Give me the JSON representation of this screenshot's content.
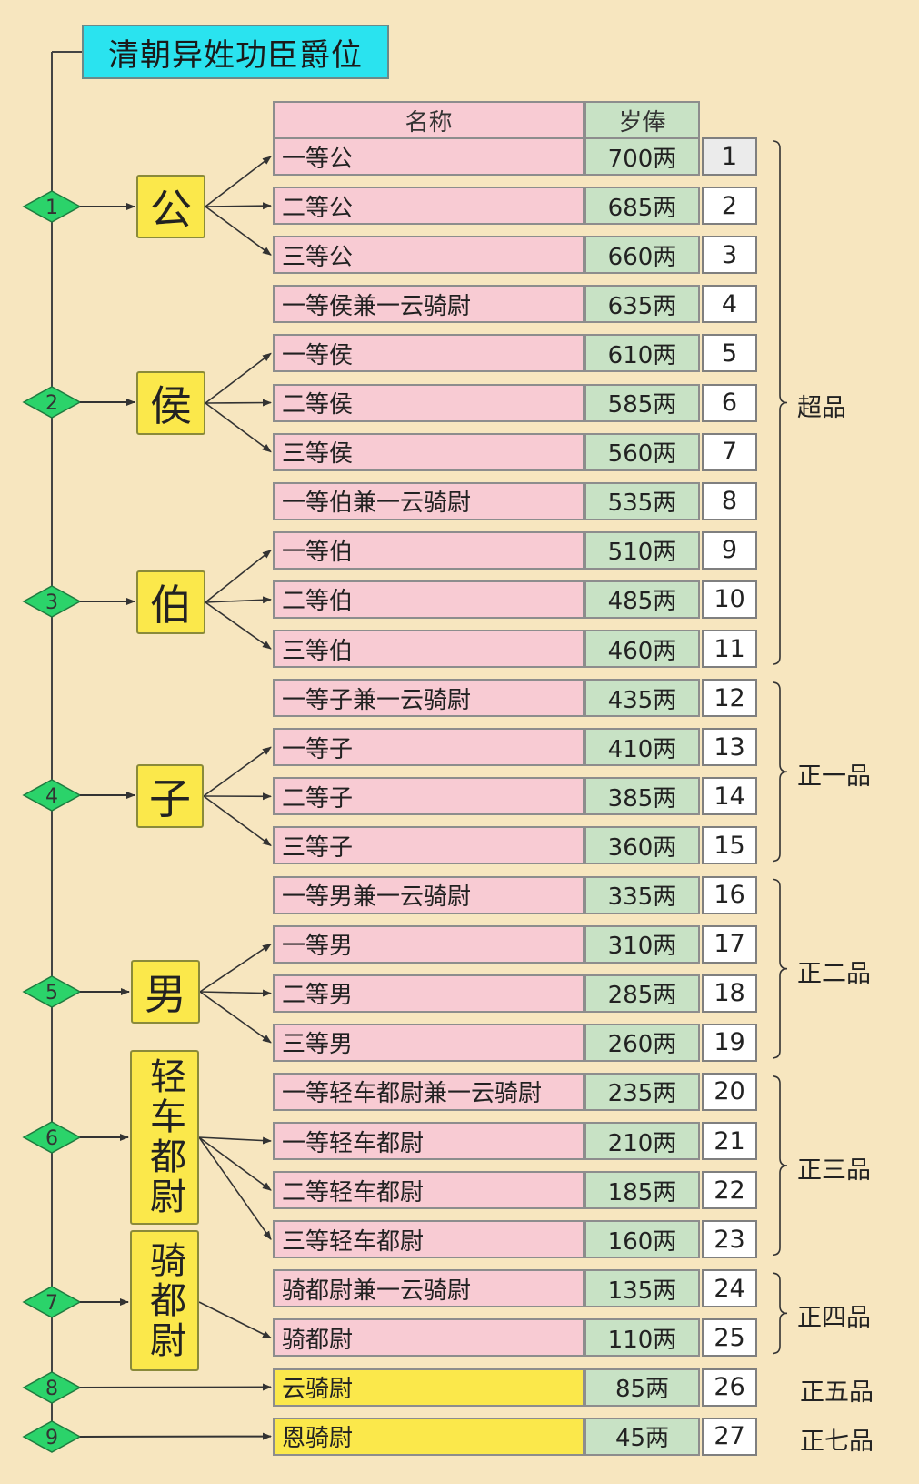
{
  "title": "清朝异姓功臣爵位",
  "headers": {
    "name": "名称",
    "salary": "岁俸"
  },
  "rows": [
    {
      "name": "一等公",
      "salary": "700两",
      "num": "1"
    },
    {
      "name": "二等公",
      "salary": "685两",
      "num": "2"
    },
    {
      "name": "三等公",
      "salary": "660两",
      "num": "3"
    },
    {
      "name": "一等侯兼一云骑尉",
      "salary": "635两",
      "num": "4"
    },
    {
      "name": "一等侯",
      "salary": "610两",
      "num": "5"
    },
    {
      "name": "二等侯",
      "salary": "585两",
      "num": "6"
    },
    {
      "name": "三等侯",
      "salary": "560两",
      "num": "7"
    },
    {
      "name": "一等伯兼一云骑尉",
      "salary": "535两",
      "num": "8"
    },
    {
      "name": "一等伯",
      "salary": "510两",
      "num": "9"
    },
    {
      "name": "二等伯",
      "salary": "485两",
      "num": "10"
    },
    {
      "name": "三等伯",
      "salary": "460两",
      "num": "11"
    },
    {
      "name": "一等子兼一云骑尉",
      "salary": "435两",
      "num": "12"
    },
    {
      "name": "一等子",
      "salary": "410两",
      "num": "13"
    },
    {
      "name": "二等子",
      "salary": "385两",
      "num": "14"
    },
    {
      "name": "三等子",
      "salary": "360两",
      "num": "15"
    },
    {
      "name": "一等男兼一云骑尉",
      "salary": "335两",
      "num": "16"
    },
    {
      "name": "一等男",
      "salary": "310两",
      "num": "17"
    },
    {
      "name": "二等男",
      "salary": "285两",
      "num": "18"
    },
    {
      "name": "三等男",
      "salary": "260两",
      "num": "19"
    },
    {
      "name": "一等轻车都尉兼一云骑尉",
      "salary": "235两",
      "num": "20"
    },
    {
      "name": "一等轻车都尉",
      "salary": "210两",
      "num": "21"
    },
    {
      "name": "二等轻车都尉",
      "salary": "185两",
      "num": "22"
    },
    {
      "name": "三等轻车都尉",
      "salary": "160两",
      "num": "23"
    },
    {
      "name": "骑都尉兼一云骑尉",
      "salary": "135两",
      "num": "24"
    },
    {
      "name": "骑都尉",
      "salary": "110两",
      "num": "25"
    },
    {
      "name": "云骑尉",
      "salary": "85两",
      "num": "26"
    },
    {
      "name": "恩骑尉",
      "salary": "45两",
      "num": "27"
    }
  ],
  "ranks": [
    {
      "label": "公",
      "node": "1"
    },
    {
      "label": "侯",
      "node": "2"
    },
    {
      "label": "伯",
      "node": "3"
    },
    {
      "label": "子",
      "node": "4"
    },
    {
      "label": "男",
      "node": "5"
    },
    {
      "label": "轻车都尉",
      "node": "6"
    },
    {
      "label": "骑都尉",
      "node": "7"
    },
    {
      "label": "",
      "node": "8"
    },
    {
      "label": "",
      "node": "9"
    }
  ],
  "grades": [
    "超品",
    "正一品",
    "正二品",
    "正三品",
    "正四品",
    "正五品",
    "正七品"
  ],
  "colors": {
    "background": "#f7e6bf",
    "title": "#2ae3ef",
    "name_cell": "#f8cbd3",
    "name_cell_highlight": "#fbe84b",
    "salary_cell": "#c8e2c5",
    "rank_box": "#fbe84b",
    "diamond": "#2bd36a"
  }
}
